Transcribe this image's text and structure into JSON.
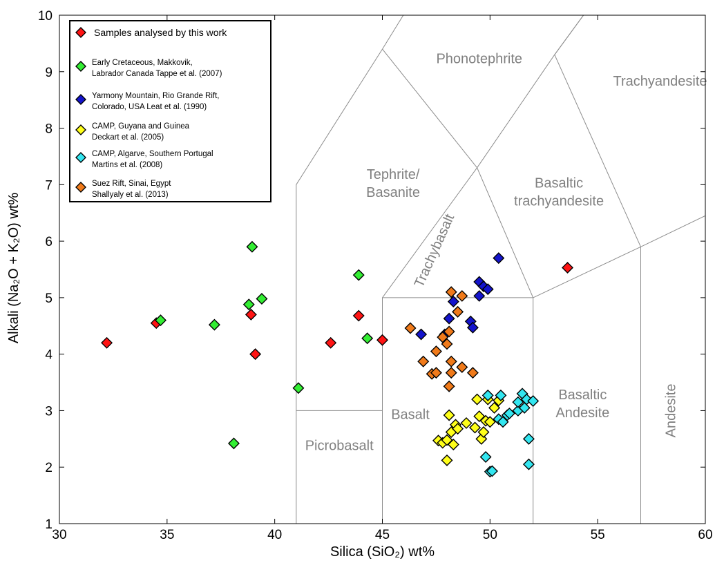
{
  "chart_data": {
    "type": "scatter",
    "xlabel": "Silica (SiO₂) wt%",
    "ylabel": "Alkali (Na₂O + K₂O) wt%",
    "xlim": [
      30,
      60
    ],
    "ylim": [
      1,
      10
    ],
    "xticks": [
      30,
      35,
      40,
      45,
      50,
      55,
      60
    ],
    "yticks": [
      1,
      2,
      3,
      4,
      5,
      6,
      7,
      8,
      9,
      10
    ],
    "grid": false,
    "legend_position": "top-left",
    "fields": [
      {
        "name": "Picrobasalt",
        "label": [
          "Picrobasalt"
        ],
        "at": [
          43,
          2.3
        ]
      },
      {
        "name": "Basalt",
        "label": [
          "Basalt"
        ],
        "at": [
          46.3,
          2.85
        ]
      },
      {
        "name": "Basaltic Andesite",
        "label": [
          "Basaltic",
          "Andesite"
        ],
        "at": [
          54.3,
          3.2
        ]
      },
      {
        "name": "Andesite",
        "label": [
          "Andesite"
        ],
        "at": [
          58.6,
          3.0
        ],
        "rotate": true
      },
      {
        "name": "Tephrite/Basanite",
        "label": [
          "Tephrite/",
          "Basanite"
        ],
        "at": [
          45.5,
          7.1
        ]
      },
      {
        "name": "Trachybasalt",
        "label": [
          "Trachybasalt"
        ],
        "at": [
          47.6,
          5.8
        ],
        "rotate_angle": -66
      },
      {
        "name": "Basaltic trachyandesite",
        "label": [
          "Basaltic",
          "trachyandesite"
        ],
        "at": [
          53.2,
          6.95
        ]
      },
      {
        "name": "Phonotephrite",
        "label": [
          "Phonotephrite"
        ],
        "at": [
          49.5,
          9.15
        ]
      },
      {
        "name": "Trachyandesite",
        "label": [
          "Trachyandesite"
        ],
        "at": [
          57.9,
          8.75
        ]
      }
    ],
    "boundaries": [
      [
        [
          41,
          1
        ],
        [
          41,
          7
        ],
        [
          45,
          9.4
        ],
        [
          48.4,
          11.5
        ]
      ],
      [
        [
          41,
          3
        ],
        [
          45,
          3
        ]
      ],
      [
        [
          45,
          1
        ],
        [
          45,
          5
        ],
        [
          49.4,
          7.3
        ],
        [
          53,
          9.3
        ],
        [
          57.6,
          11.7
        ]
      ],
      [
        [
          45,
          5
        ],
        [
          52,
          5
        ]
      ],
      [
        [
          52,
          1
        ],
        [
          52,
          5
        ]
      ],
      [
        [
          52,
          5
        ],
        [
          57,
          5.9
        ],
        [
          63,
          7
        ]
      ],
      [
        [
          57,
          1
        ],
        [
          57,
          5.9
        ]
      ],
      [
        [
          49.4,
          7.3
        ],
        [
          52,
          5
        ]
      ],
      [
        [
          45,
          9.4
        ],
        [
          49.4,
          7.3
        ]
      ],
      [
        [
          53,
          9.3
        ],
        [
          57.6,
          11.7
        ]
      ],
      [
        [
          53,
          9.3
        ],
        [
          57,
          5.9
        ]
      ],
      [
        [
          60.5,
          10.7
        ],
        [
          60,
          10.3
        ]
      ]
    ],
    "series": [
      {
        "name": "Samples analysed by this work",
        "legend": [
          "Samples analysed by this work"
        ],
        "color": "#ff1414",
        "points": [
          [
            32.2,
            4.2
          ],
          [
            34.5,
            4.55
          ],
          [
            38.9,
            4.7
          ],
          [
            39.1,
            4.0
          ],
          [
            42.6,
            4.2
          ],
          [
            43.9,
            4.68
          ],
          [
            45.0,
            4.25
          ],
          [
            53.6,
            5.53
          ]
        ]
      },
      {
        "name": "Early Cretaceous, Makkovik, Labrador Canada  Tappe et al. (2007)",
        "legend": [
          "Early Cretaceous, Makkovik,",
          "Labrador Canada  Tappe et al. (2007)"
        ],
        "color": "#33ee33",
        "points": [
          [
            34.7,
            4.6
          ],
          [
            37.2,
            4.52
          ],
          [
            38.8,
            4.88
          ],
          [
            38.95,
            5.9
          ],
          [
            39.4,
            4.98
          ],
          [
            38.1,
            2.42
          ],
          [
            41.1,
            3.4
          ],
          [
            43.9,
            5.4
          ],
          [
            44.3,
            4.28
          ]
        ]
      },
      {
        "name": "Yarmony Mountain, Rio Grande Rift, Colorado, USA  Leat et al. (1990)",
        "legend": [
          "Yarmony Mountain, Rio Grande Rift,",
          "Colorado, USA  Leat et al. (1990)"
        ],
        "color": "#1414cc",
        "points": [
          [
            46.8,
            4.35
          ],
          [
            47.9,
            4.35
          ],
          [
            48.1,
            4.63
          ],
          [
            48.3,
            4.93
          ],
          [
            49.1,
            4.58
          ],
          [
            49.2,
            4.47
          ],
          [
            49.5,
            5.03
          ],
          [
            49.5,
            5.28
          ],
          [
            49.7,
            5.2
          ],
          [
            49.9,
            5.15
          ],
          [
            50.4,
            5.7
          ]
        ]
      },
      {
        "name": "CAMP, Guyana and Guinea Deckart et al. (2005)",
        "legend": [
          "CAMP, Guyana and Guinea",
          "Deckart et al. (2005)"
        ],
        "color": "#ffff1a",
        "points": [
          [
            47.6,
            2.47
          ],
          [
            47.8,
            2.43
          ],
          [
            48.0,
            2.12
          ],
          [
            48.0,
            2.48
          ],
          [
            48.1,
            2.92
          ],
          [
            48.2,
            2.62
          ],
          [
            48.3,
            2.4
          ],
          [
            48.4,
            2.75
          ],
          [
            48.5,
            2.68
          ],
          [
            49.4,
            3.2
          ],
          [
            49.5,
            2.9
          ],
          [
            49.6,
            2.5
          ],
          [
            49.7,
            2.62
          ],
          [
            49.8,
            2.82
          ],
          [
            49.9,
            3.2
          ],
          [
            50.0,
            2.8
          ],
          [
            50.2,
            3.05
          ],
          [
            50.4,
            3.18
          ],
          [
            49.3,
            2.7
          ],
          [
            48.9,
            2.78
          ]
        ]
      },
      {
        "name": "CAMP, Algarve, Southern Portugal Martins et al. (2008)",
        "legend": [
          "CAMP, Algarve, Southern Portugal",
          "Martins et al. (2008)"
        ],
        "color": "#33e6f0",
        "points": [
          [
            49.9,
            3.27
          ],
          [
            50.4,
            2.85
          ],
          [
            50.5,
            3.27
          ],
          [
            50.6,
            2.8
          ],
          [
            50.8,
            2.92
          ],
          [
            50.9,
            2.95
          ],
          [
            51.3,
            3.0
          ],
          [
            51.3,
            3.15
          ],
          [
            51.5,
            3.3
          ],
          [
            51.6,
            3.05
          ],
          [
            51.7,
            3.2
          ],
          [
            52.0,
            3.17
          ],
          [
            51.8,
            2.5
          ],
          [
            51.8,
            2.05
          ],
          [
            49.8,
            2.18
          ],
          [
            50.0,
            1.92
          ],
          [
            50.1,
            1.93
          ]
        ]
      },
      {
        "name": "Suez Rift, Sinai, Egypt Shallyaly et al. (2013)",
        "legend": [
          "Suez Rift, Sinai, Egypt",
          "Shallyaly et al. (2013)"
        ],
        "color": "#f07a1a",
        "points": [
          [
            46.3,
            4.46
          ],
          [
            46.9,
            3.87
          ],
          [
            47.3,
            3.65
          ],
          [
            47.5,
            3.67
          ],
          [
            47.5,
            4.05
          ],
          [
            47.8,
            4.3
          ],
          [
            48.0,
            4.18
          ],
          [
            48.1,
            4.4
          ],
          [
            48.1,
            3.43
          ],
          [
            48.2,
            3.87
          ],
          [
            48.2,
            3.67
          ],
          [
            48.2,
            5.1
          ],
          [
            48.5,
            4.75
          ],
          [
            48.7,
            5.03
          ],
          [
            48.7,
            3.77
          ],
          [
            49.2,
            3.67
          ]
        ]
      }
    ]
  }
}
